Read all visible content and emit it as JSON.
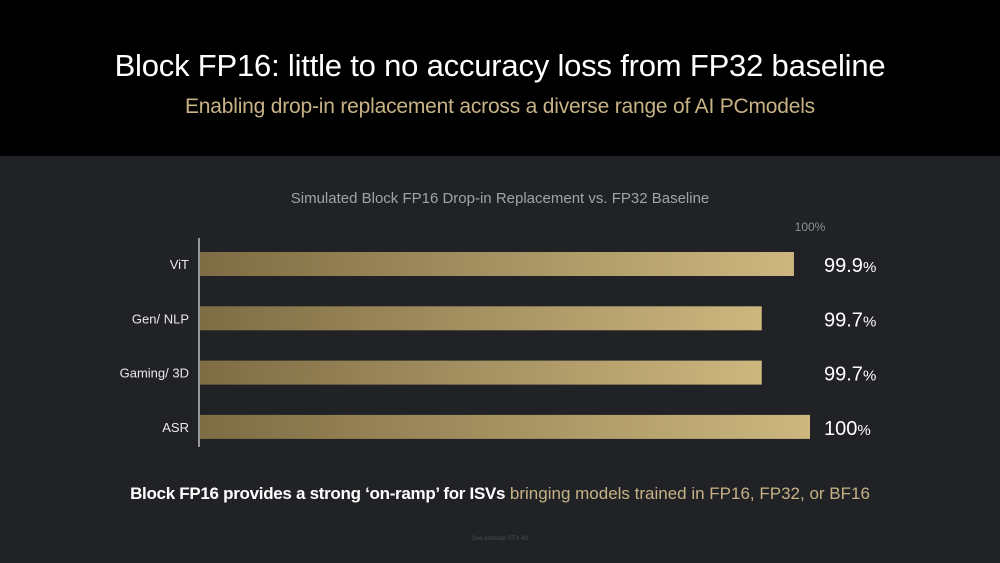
{
  "header": {
    "title": "Block FP16: little to no accuracy loss from FP32 baseline",
    "subtitle": "Enabling drop-in replacement across a diverse range of AI PCmodels"
  },
  "footer": {
    "statement_bold": "Block FP16 provides a strong ‘on-ramp’ for ISVs",
    "statement_rest": "bringing models trained in FP16, FP32, or BF16",
    "endnote": "See endnote STX-43"
  },
  "colors": {
    "bar_start": "#7e6c44",
    "bar_end": "#cdb77f",
    "accent_text": "#c7b285"
  },
  "chart_data": {
    "type": "bar",
    "orientation": "horizontal",
    "title": "Simulated Block FP16 Drop-in Replacement vs. FP32 Baseline",
    "categories": [
      "ViT",
      "Gen/ NLP",
      "Gaming/ 3D",
      "ASR"
    ],
    "values": [
      99.9,
      99.7,
      99.7,
      100
    ],
    "value_labels": [
      "99.9",
      "99.7",
      "99.7",
      "100"
    ],
    "value_suffix": "%",
    "reference_label": "100%",
    "unit": "%",
    "grid": false,
    "legend": "none"
  }
}
